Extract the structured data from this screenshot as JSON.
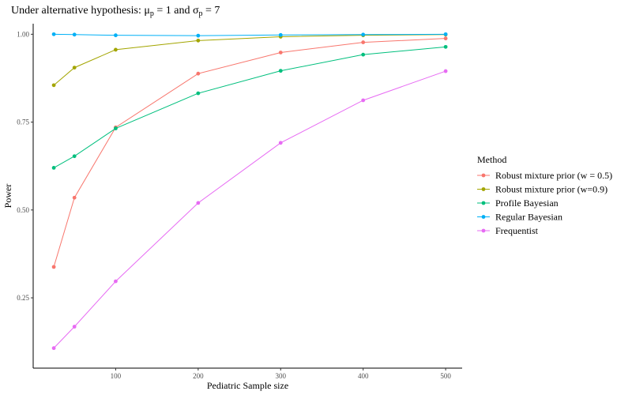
{
  "chart_data": {
    "type": "line",
    "title_parts": {
      "prefix": "Under alternative hypothesis: ",
      "mu": "μ",
      "mu_sub": "p",
      "mid": " = 1 and ",
      "sigma": "σ",
      "sigma_sub": "p",
      "suffix": " = 7"
    },
    "xlabel": "Pediatric Sample size",
    "ylabel": "Power",
    "xlim": [
      0,
      520
    ],
    "ylim": [
      0.05,
      1.03
    ],
    "xticks": [
      100,
      200,
      300,
      400,
      500
    ],
    "yticks": [
      0.25,
      0.5,
      0.75,
      1.0
    ],
    "ytick_labels": [
      "0.25",
      "0.50",
      "0.75",
      "1.00"
    ],
    "grid": false,
    "legend_title": "Method",
    "legend_position": "right",
    "x": [
      25,
      50,
      100,
      200,
      300,
      400,
      500
    ],
    "series": [
      {
        "name": "Robust mixture prior (w = 0.5)",
        "color": "#F8766D",
        "values": [
          0.338,
          0.535,
          0.735,
          0.888,
          0.948,
          0.977,
          0.988
        ]
      },
      {
        "name": "Robust mixture prior (w=0.9)",
        "color": "#A3A500",
        "values": [
          0.855,
          0.905,
          0.956,
          0.982,
          0.993,
          0.997,
          0.999
        ]
      },
      {
        "name": "Profile Bayesian",
        "color": "#00BF7D",
        "values": [
          0.62,
          0.653,
          0.732,
          0.832,
          0.896,
          0.942,
          0.964
        ]
      },
      {
        "name": "Regular Bayesian",
        "color": "#00B0F6",
        "values": [
          1.0,
          0.999,
          0.997,
          0.996,
          0.998,
          0.999,
          1.0
        ]
      },
      {
        "name": "Frequentist",
        "color": "#E76BF3",
        "values": [
          0.107,
          0.168,
          0.297,
          0.52,
          0.691,
          0.812,
          0.895
        ]
      }
    ]
  }
}
